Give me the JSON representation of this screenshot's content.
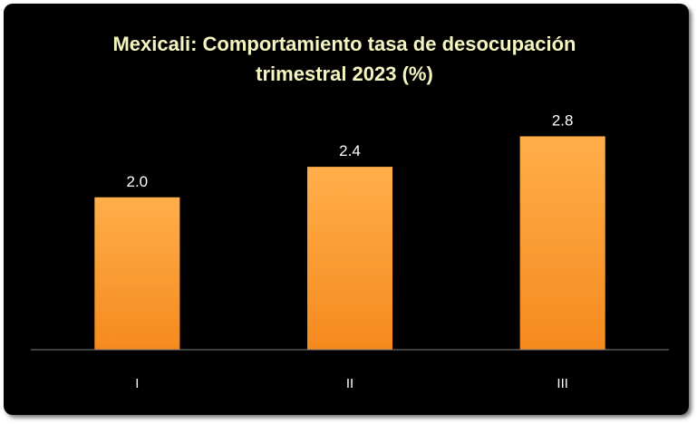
{
  "chart_data": {
    "type": "bar",
    "title": "Mexicali: Comportamiento tasa de desocupación trimestral 2023 (%)",
    "categories": [
      "I",
      "II",
      "III"
    ],
    "values": [
      2.0,
      2.4,
      2.8
    ],
    "data_labels": [
      "2.0",
      "2.4",
      "2.8"
    ],
    "xlabel": "",
    "ylabel": "",
    "ylim": [
      0,
      3.4
    ],
    "grid": false,
    "legend": "none",
    "colors": {
      "background": "#000000",
      "bar_top": "#ffae4a",
      "bar_bottom": "#f58a1e",
      "title": "#f5f5c0",
      "axis": "#7f7f7f",
      "text": "#ffffff"
    }
  }
}
